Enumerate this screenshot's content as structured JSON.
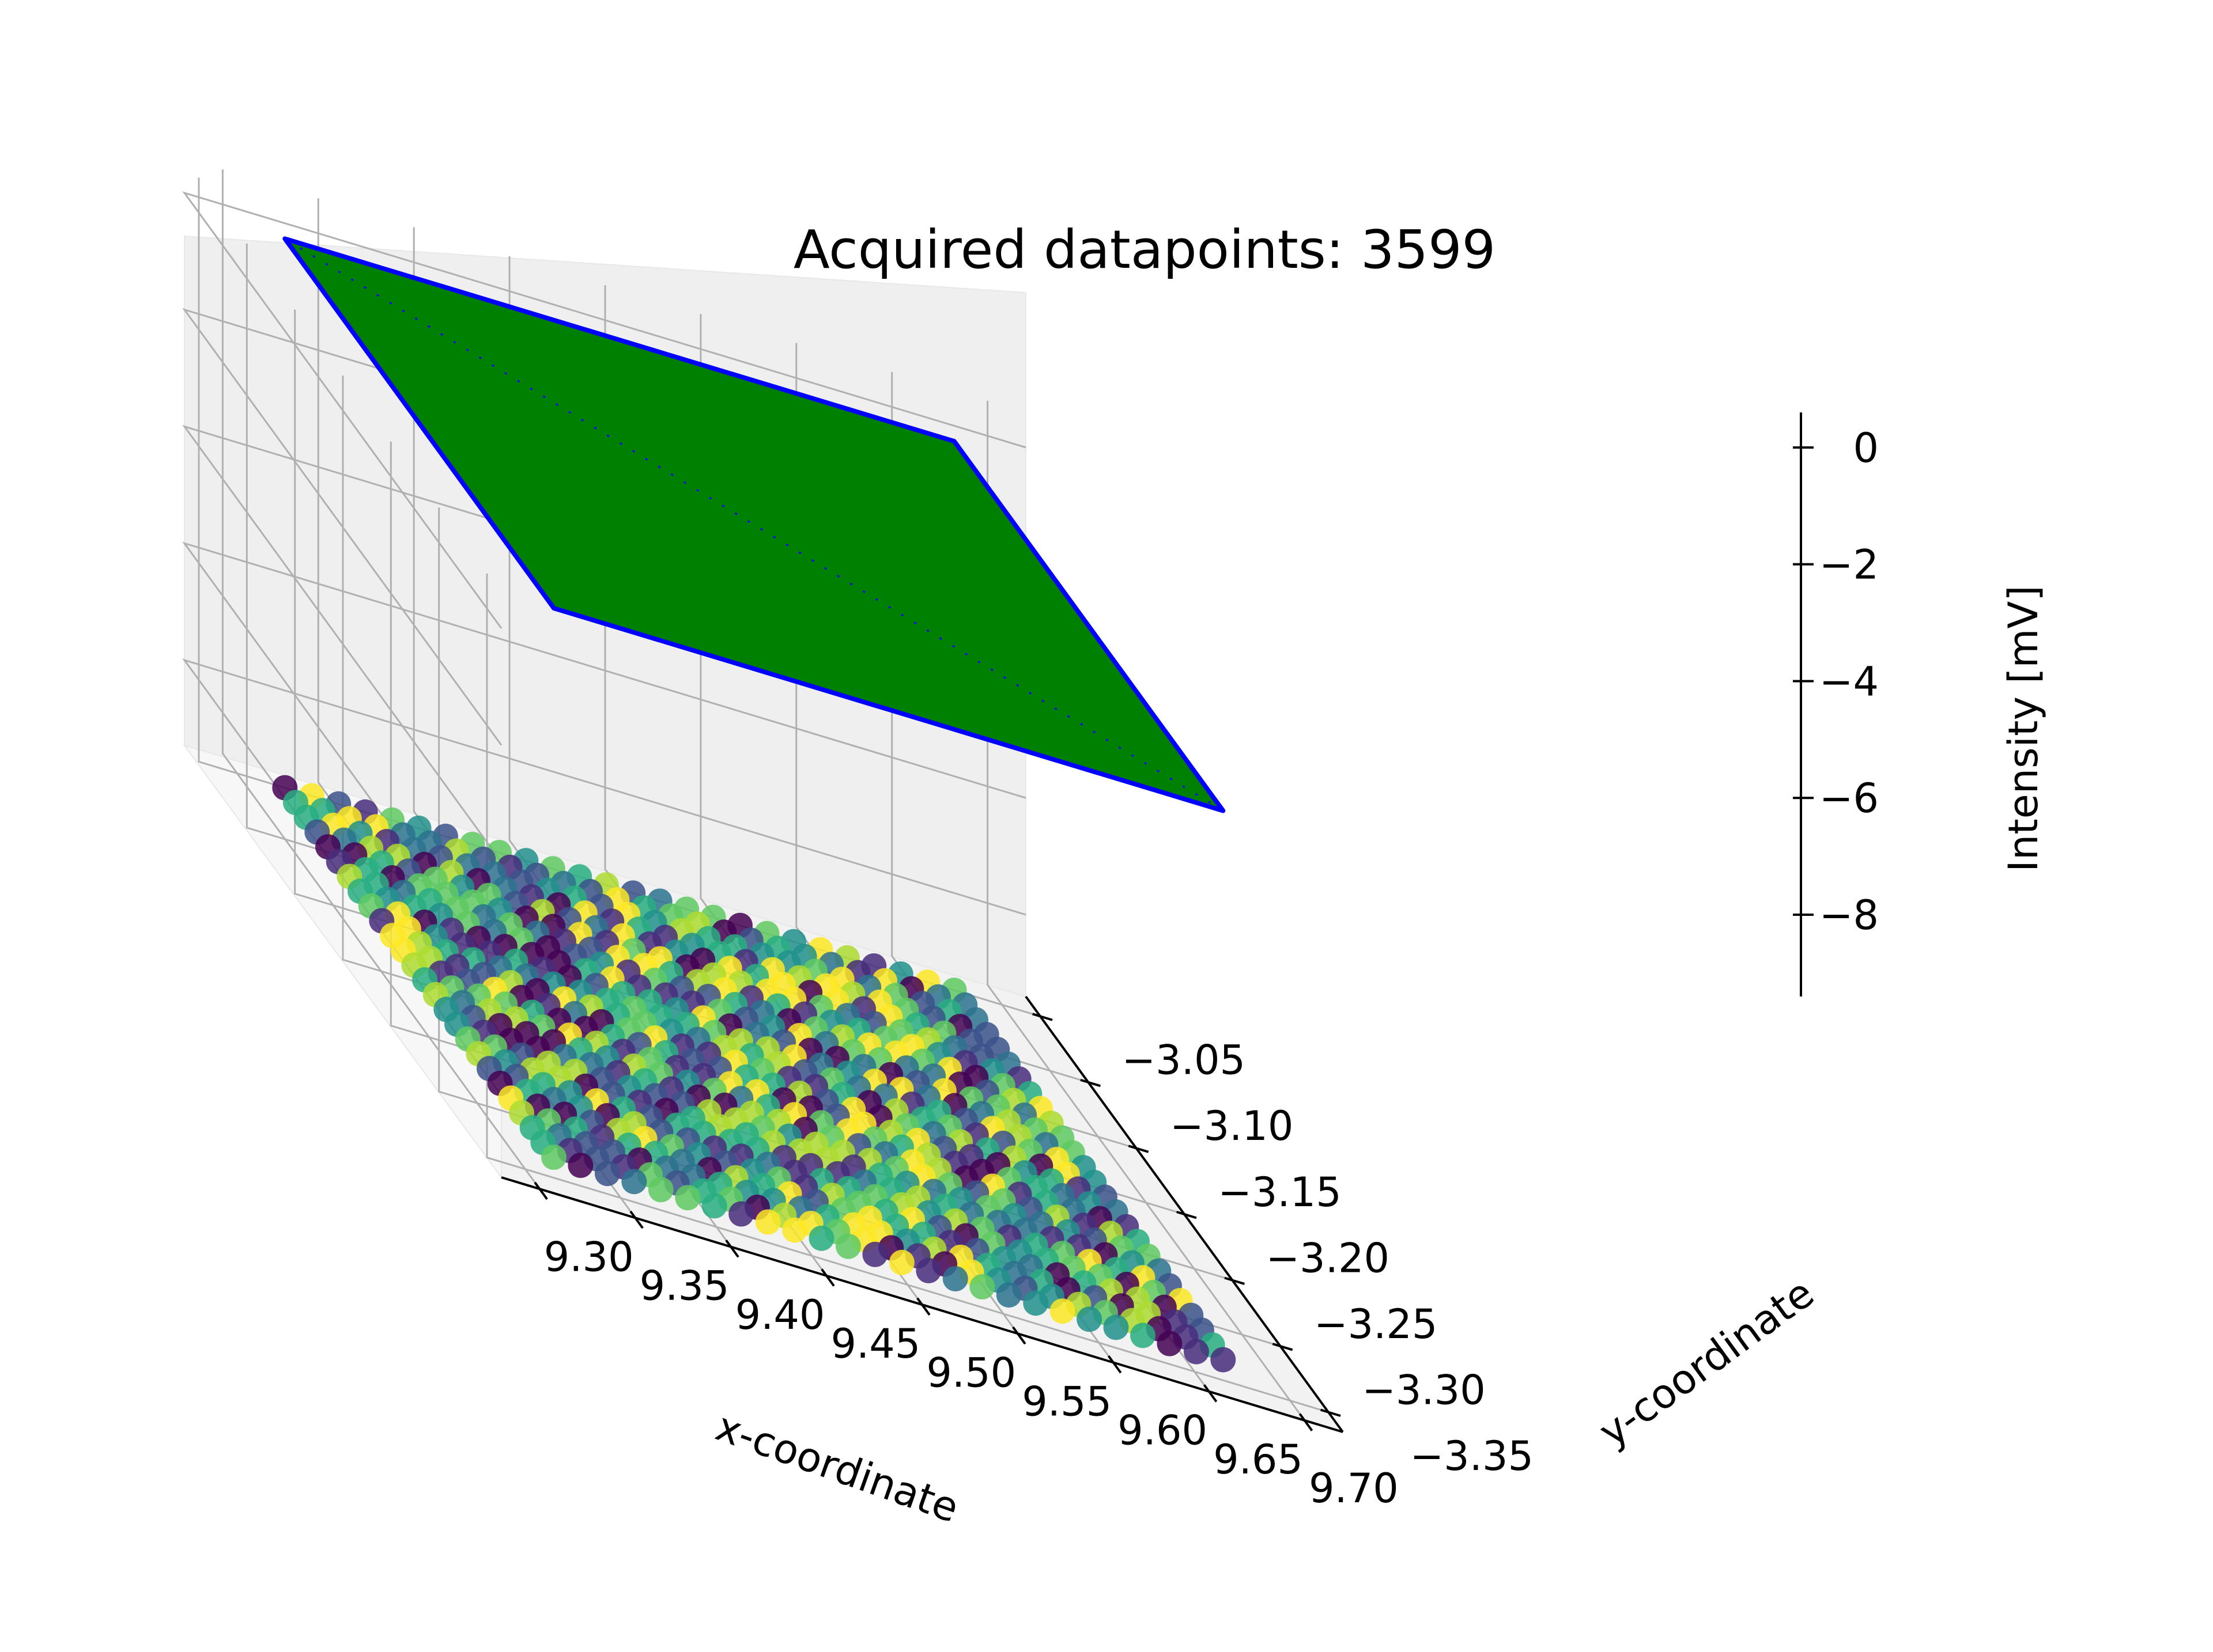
{
  "chart_data": {
    "type": "scatter",
    "projection": "3d",
    "title": "Acquired datapoints: 3599",
    "xlabel": "x-coordinate",
    "ylabel": "y-coordinate",
    "zlabel": "Intensity [mV]",
    "xlim": [
      9.28,
      9.72
    ],
    "ylim": [
      -3.365,
      -3.035
    ],
    "zlim": [
      -9.4,
      0.6
    ],
    "x_ticks": [
      "9.30",
      "9.35",
      "9.40",
      "9.45",
      "9.50",
      "9.55",
      "9.60",
      "9.65",
      "9.70"
    ],
    "y_ticks": [
      "−3.05",
      "−3.10",
      "−3.15",
      "−3.20",
      "−3.25",
      "−3.30",
      "−3.35"
    ],
    "z_ticks": [
      "0",
      "−2",
      "−4",
      "−6",
      "−8"
    ],
    "grid": true,
    "series": [
      {
        "kind": "surface",
        "color": "#008000",
        "edge_color": "#0000ff",
        "x_range": [
          9.325,
          9.675
        ],
        "y_range": [
          -3.33,
          -3.05
        ],
        "z": 0.0
      },
      {
        "kind": "scatter",
        "colormap": "viridis",
        "x_range": [
          9.325,
          9.675
        ],
        "y_range": [
          -3.33,
          -3.05
        ],
        "z": -9.4
      }
    ]
  }
}
